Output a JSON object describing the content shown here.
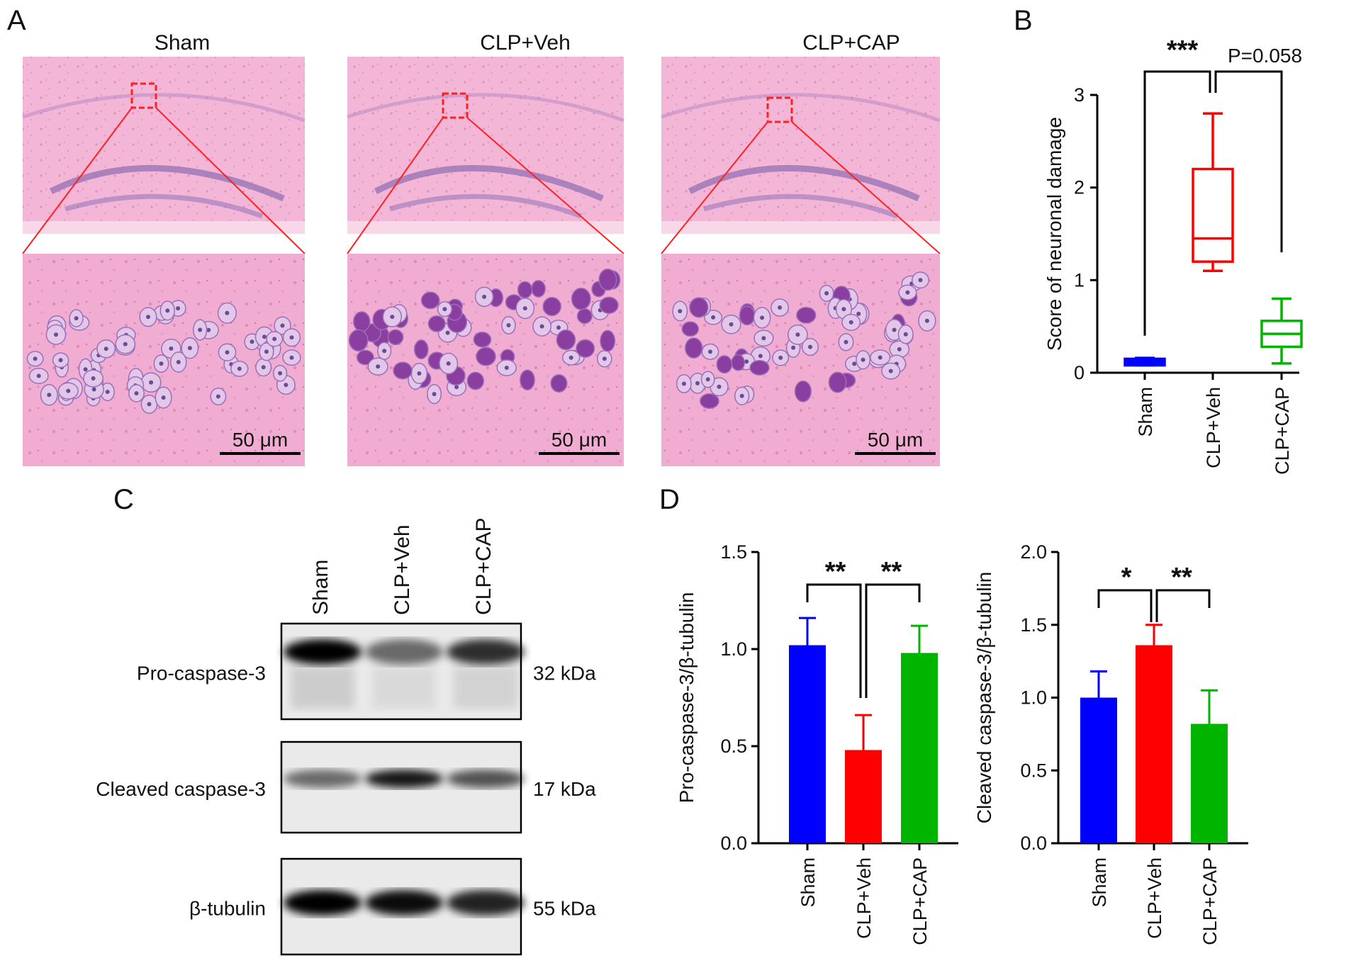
{
  "panel_labels": {
    "a": "A",
    "b": "B",
    "c": "C",
    "d": "D"
  },
  "groups": [
    "Sham",
    "CLP+Veh",
    "CLP+CAP"
  ],
  "colors": {
    "sham": "#0000ff",
    "veh": "#ff0000",
    "cap": "#00b400",
    "zoom": "#ff2020"
  },
  "histology": {
    "scale_bar": "50 μm",
    "stain": "H&E, hippocampus"
  },
  "blot": {
    "rows": [
      {
        "label": "Pro-caspase-3",
        "kda": "32 kDa"
      },
      {
        "label": "Cleaved caspase-3",
        "kda": "17 kDa"
      },
      {
        "label": "β-tubulin",
        "kda": "55 kDa"
      }
    ]
  },
  "chart_data": [
    {
      "panel": "B",
      "type": "box",
      "ylabel": "Score of neuronal damage",
      "ylim": [
        0,
        3
      ],
      "yticks": [
        "0",
        "1",
        "2",
        "3"
      ],
      "categories": [
        "Sham",
        "CLP+Veh",
        "CLP+CAP"
      ],
      "boxes": [
        {
          "min": 0.08,
          "q1": 0.08,
          "median": 0.12,
          "q3": 0.15,
          "max": 0.16
        },
        {
          "min": 1.1,
          "q1": 1.2,
          "median": 1.45,
          "q3": 2.2,
          "max": 2.8
        },
        {
          "min": 0.1,
          "q1": 0.28,
          "median": 0.42,
          "q3": 0.56,
          "max": 0.8
        }
      ],
      "annotations": [
        "***",
        "P=0.058"
      ]
    },
    {
      "panel": "D-left",
      "type": "bar",
      "ylabel": "Pro-caspase-3/β-tubulin",
      "ylim": [
        0,
        1.5
      ],
      "yticks": [
        "0.0",
        "0.5",
        "1.0",
        "1.5"
      ],
      "categories": [
        "Sham",
        "CLP+Veh",
        "CLP+CAP"
      ],
      "values": [
        1.02,
        0.48,
        0.98
      ],
      "errors": [
        0.14,
        0.18,
        0.14
      ],
      "annotations": [
        "**",
        "**"
      ]
    },
    {
      "panel": "D-right",
      "type": "bar",
      "ylabel": "Cleaved caspase-3/β-tubulin",
      "ylim": [
        0,
        2.0
      ],
      "yticks": [
        "0.0",
        "0.5",
        "1.0",
        "1.5",
        "2.0"
      ],
      "categories": [
        "Sham",
        "CLP+Veh",
        "CLP+CAP"
      ],
      "values": [
        1.0,
        1.36,
        0.82
      ],
      "errors": [
        0.18,
        0.14,
        0.23
      ],
      "annotations": [
        "*",
        "**"
      ]
    }
  ]
}
